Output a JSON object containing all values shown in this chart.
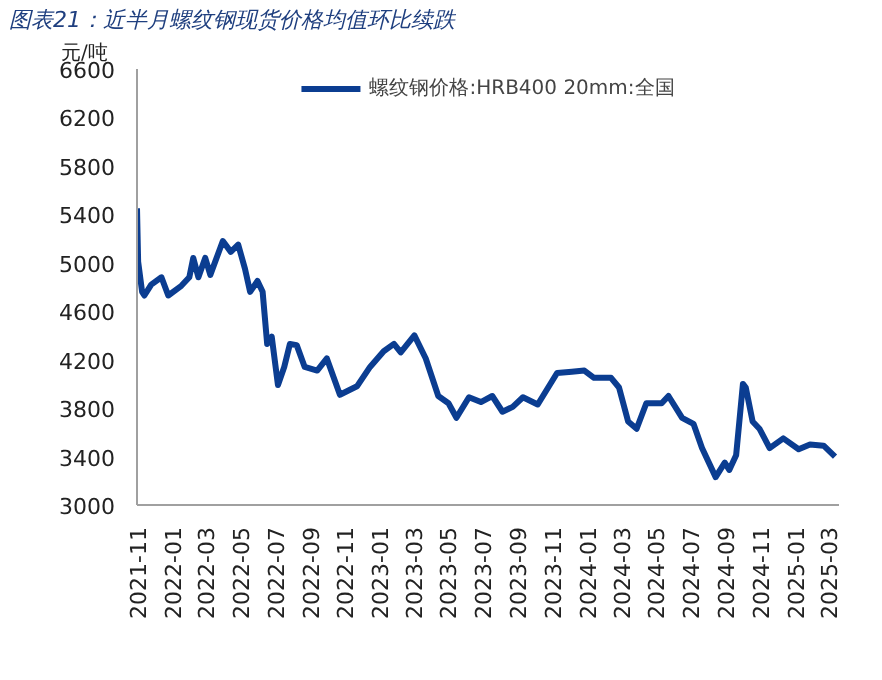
{
  "chart_data": {
    "type": "line",
    "title": "图表21：近半月螺纹钢现货价格均值环比续跌",
    "ylabel": "元/吨",
    "x": [
      "2021-11-01",
      "2021-11-03",
      "2021-11-10",
      "2021-11-14",
      "2021-11-26",
      "2021-12-14",
      "2021-12-26",
      "2022-01-18",
      "2022-02-01",
      "2022-02-08",
      "2022-02-17",
      "2022-03-01",
      "2022-03-10",
      "2022-04-01",
      "2022-04-15",
      "2022-04-28",
      "2022-05-10",
      "2022-05-19",
      "2022-06-01",
      "2022-06-10",
      "2022-06-18",
      "2022-06-26",
      "2022-07-07",
      "2022-07-18",
      "2022-07-28",
      "2022-08-09",
      "2022-08-23",
      "2022-09-14",
      "2022-10-01",
      "2022-10-24",
      "2022-11-23",
      "2022-12-16",
      "2023-01-09",
      "2023-01-27",
      "2023-02-08",
      "2023-03-04",
      "2023-03-24",
      "2023-04-15",
      "2023-05-03",
      "2023-05-17",
      "2023-06-08",
      "2023-06-29",
      "2023-07-19",
      "2023-08-06",
      "2023-08-24",
      "2023-09-11",
      "2023-10-07",
      "2023-11-10",
      "2023-12-06",
      "2023-12-28",
      "2024-01-14",
      "2024-02-13",
      "2024-02-27",
      "2024-03-14",
      "2024-03-29",
      "2024-04-15",
      "2024-05-12",
      "2024-05-24",
      "2024-06-17",
      "2024-07-07",
      "2024-07-22",
      "2024-08-15",
      "2024-08-31",
      "2024-09-08",
      "2024-09-20",
      "2024-10-02",
      "2024-10-07",
      "2024-10-19",
      "2024-10-31",
      "2024-11-18",
      "2024-12-12",
      "2025-01-08",
      "2025-01-28",
      "2025-02-21",
      "2025-03-13"
    ],
    "series": [
      {
        "name": "螺纹钢价格:HRB400 20mm:全国",
        "color": "#0b3d91",
        "values": [
          5450,
          5010,
          4760,
          4730,
          4820,
          4880,
          4730,
          4810,
          4880,
          5040,
          4880,
          5040,
          4900,
          5180,
          5090,
          5150,
          4950,
          4760,
          4850,
          4760,
          4330,
          4390,
          3990,
          4140,
          4330,
          4320,
          4140,
          4110,
          4210,
          3910,
          3980,
          4140,
          4270,
          4330,
          4260,
          4400,
          4210,
          3900,
          3840,
          3720,
          3890,
          3850,
          3900,
          3770,
          3810,
          3890,
          3830,
          4090,
          4100,
          4110,
          4050,
          4050,
          3970,
          3690,
          3630,
          3840,
          3840,
          3900,
          3720,
          3670,
          3470,
          3230,
          3350,
          3290,
          3410,
          4000,
          3970,
          3690,
          3630,
          3470,
          3550,
          3460,
          3500,
          3490,
          3400
        ]
      }
    ],
    "ylim": [
      3000,
      6600
    ],
    "yticks": [
      3000,
      3400,
      3800,
      4200,
      4600,
      5000,
      5400,
      5800,
      6200,
      6600
    ],
    "xlim": [
      "2021-11-01",
      "2025-03-20"
    ],
    "xticks": [
      "2021-11",
      "2022-01",
      "2022-03",
      "2022-05",
      "2022-07",
      "2022-09",
      "2022-11",
      "2023-01",
      "2023-03",
      "2023-05",
      "2023-07",
      "2023-09",
      "2023-11",
      "2024-01",
      "2024-03",
      "2024-05",
      "2024-07",
      "2024-09",
      "2024-11",
      "2025-01",
      "2025-03"
    ],
    "legend": "top",
    "grid": false,
    "marker": "none",
    "line_style": "solid"
  }
}
